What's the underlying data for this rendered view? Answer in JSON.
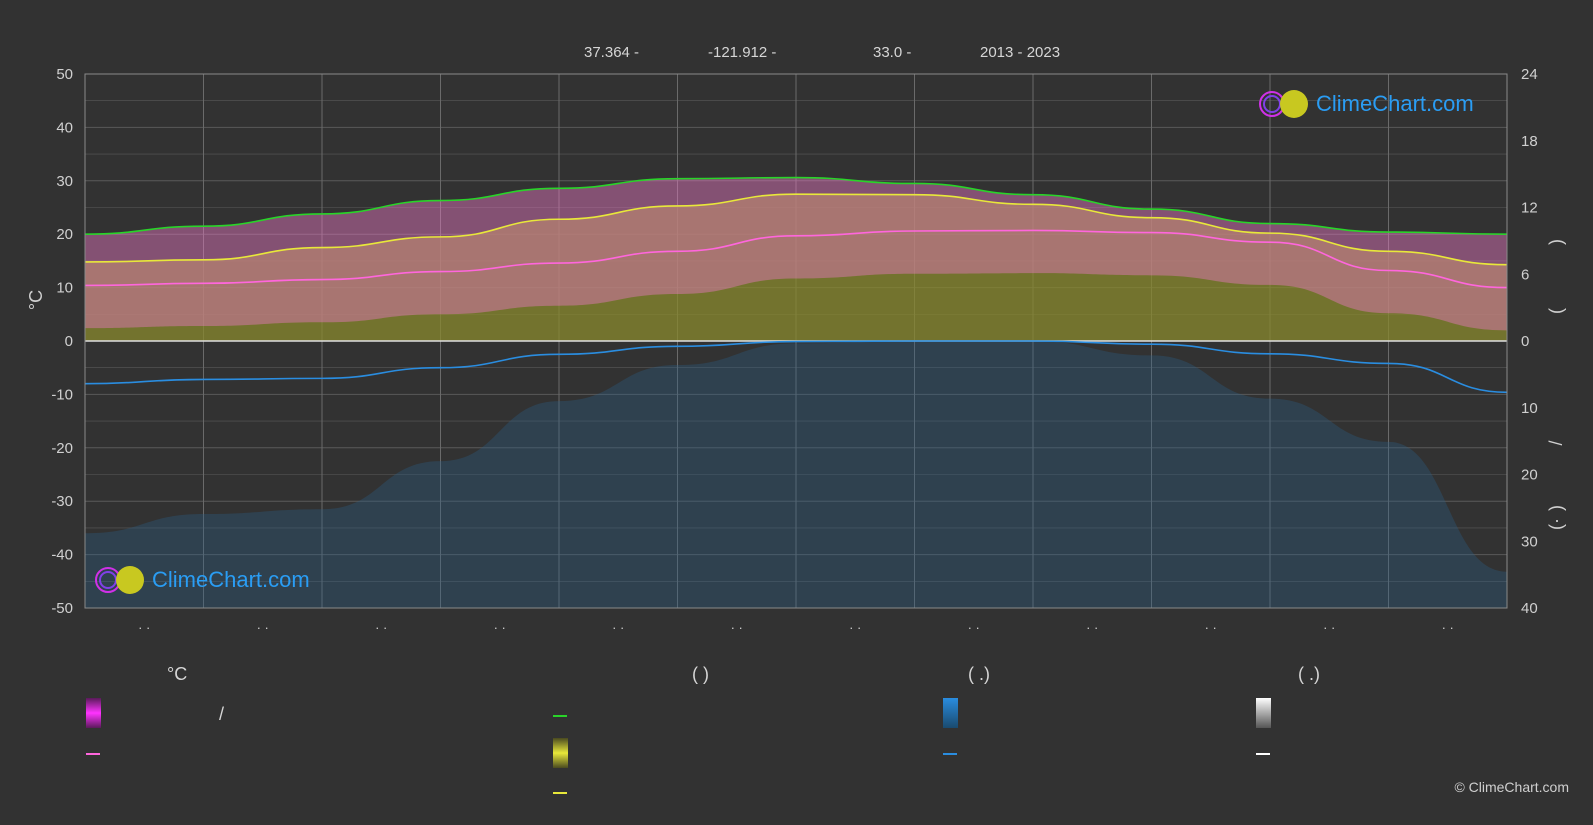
{
  "header": {
    "lat": "37.364 -",
    "lon": "-121.912 -",
    "elev": "33.0 -",
    "years": "2013 - 2023"
  },
  "logo_text": "ClimeChart.com",
  "copyright": "© ClimeChart.com",
  "legend": {
    "temp_heading": "°C",
    "daylight_heading": "(          )",
    "rain_heading": "(   .)",
    "snow_heading": "(   .)",
    "slash": "/"
  },
  "chart_data": {
    "type": "area",
    "months": 12,
    "month_tick_labels": [
      "· ·",
      "· ·",
      "· ·",
      "· ·",
      "· ·",
      "· ·",
      "· ·",
      "· ·",
      "· ·",
      "· ·",
      "· ·",
      "· ·"
    ],
    "y_left": {
      "label": "°C",
      "range": [
        -50,
        50
      ],
      "ticks": [
        -50,
        -40,
        -30,
        -20,
        -10,
        0,
        10,
        20,
        30,
        40,
        50
      ]
    },
    "y_right_top": {
      "range": [
        0,
        24
      ],
      "ticks": [
        0,
        6,
        12,
        18,
        24
      ]
    },
    "y_right_bottom": {
      "range": [
        0,
        40
      ],
      "ticks": [
        10,
        20,
        30,
        40
      ]
    },
    "right_axis_glyphs": [
      ")",
      "(",
      "/",
      ")",
      "·",
      "("
    ],
    "series": [
      {
        "key": "daylight",
        "color": "#29d429",
        "values": [
          20.0,
          21.5,
          23.8,
          26.3,
          28.6,
          30.4,
          30.6,
          29.5,
          27.4,
          24.7,
          22.0,
          20.4,
          20.0
        ]
      },
      {
        "key": "sunshine",
        "color": "#e8e83a",
        "values": [
          14.8,
          15.2,
          17.5,
          19.5,
          22.8,
          25.3,
          27.5,
          27.4,
          25.6,
          23.1,
          20.2,
          16.8,
          14.3
        ]
      },
      {
        "key": "temp_mean",
        "color": "#ff66dd",
        "values": [
          10.4,
          10.8,
          11.5,
          13.0,
          14.6,
          16.8,
          19.7,
          20.6,
          20.7,
          20.3,
          18.5,
          13.2,
          10.0
        ]
      },
      {
        "key": "precip",
        "color": "#2a8de0",
        "values": [
          -8.0,
          -7.2,
          -7.0,
          -5.0,
          -2.5,
          -1.0,
          -0.1,
          0.0,
          0.0,
          -0.6,
          -2.4,
          -4.2,
          -9.6
        ]
      }
    ],
    "grid": true
  },
  "colors": {
    "background": "#323232",
    "grid": "#5a5a5a",
    "temp_fill": "#e878c4",
    "sun_fill": "#8a8a2e",
    "rain_fill": "#2c5e86"
  }
}
